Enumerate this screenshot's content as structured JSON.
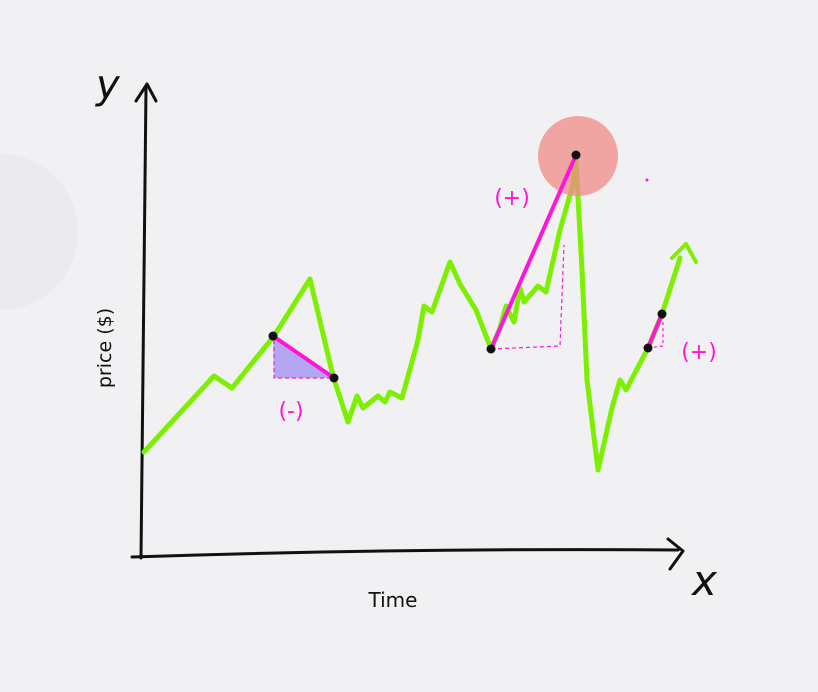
{
  "axes": {
    "y_letter": "y",
    "x_letter": "x",
    "y_label": "price ($)",
    "x_label": "Time"
  },
  "annotations": {
    "neg_label": "(-)",
    "pos_label_1": "(+)",
    "pos_label_2": "(+)"
  },
  "colors": {
    "axis": "#111111",
    "price_line": "#7cf000",
    "slope": "#ff14d8",
    "neg_fill": "#a99af0",
    "peak_highlight": "#f08b88",
    "background": "#f1f1f3"
  }
}
